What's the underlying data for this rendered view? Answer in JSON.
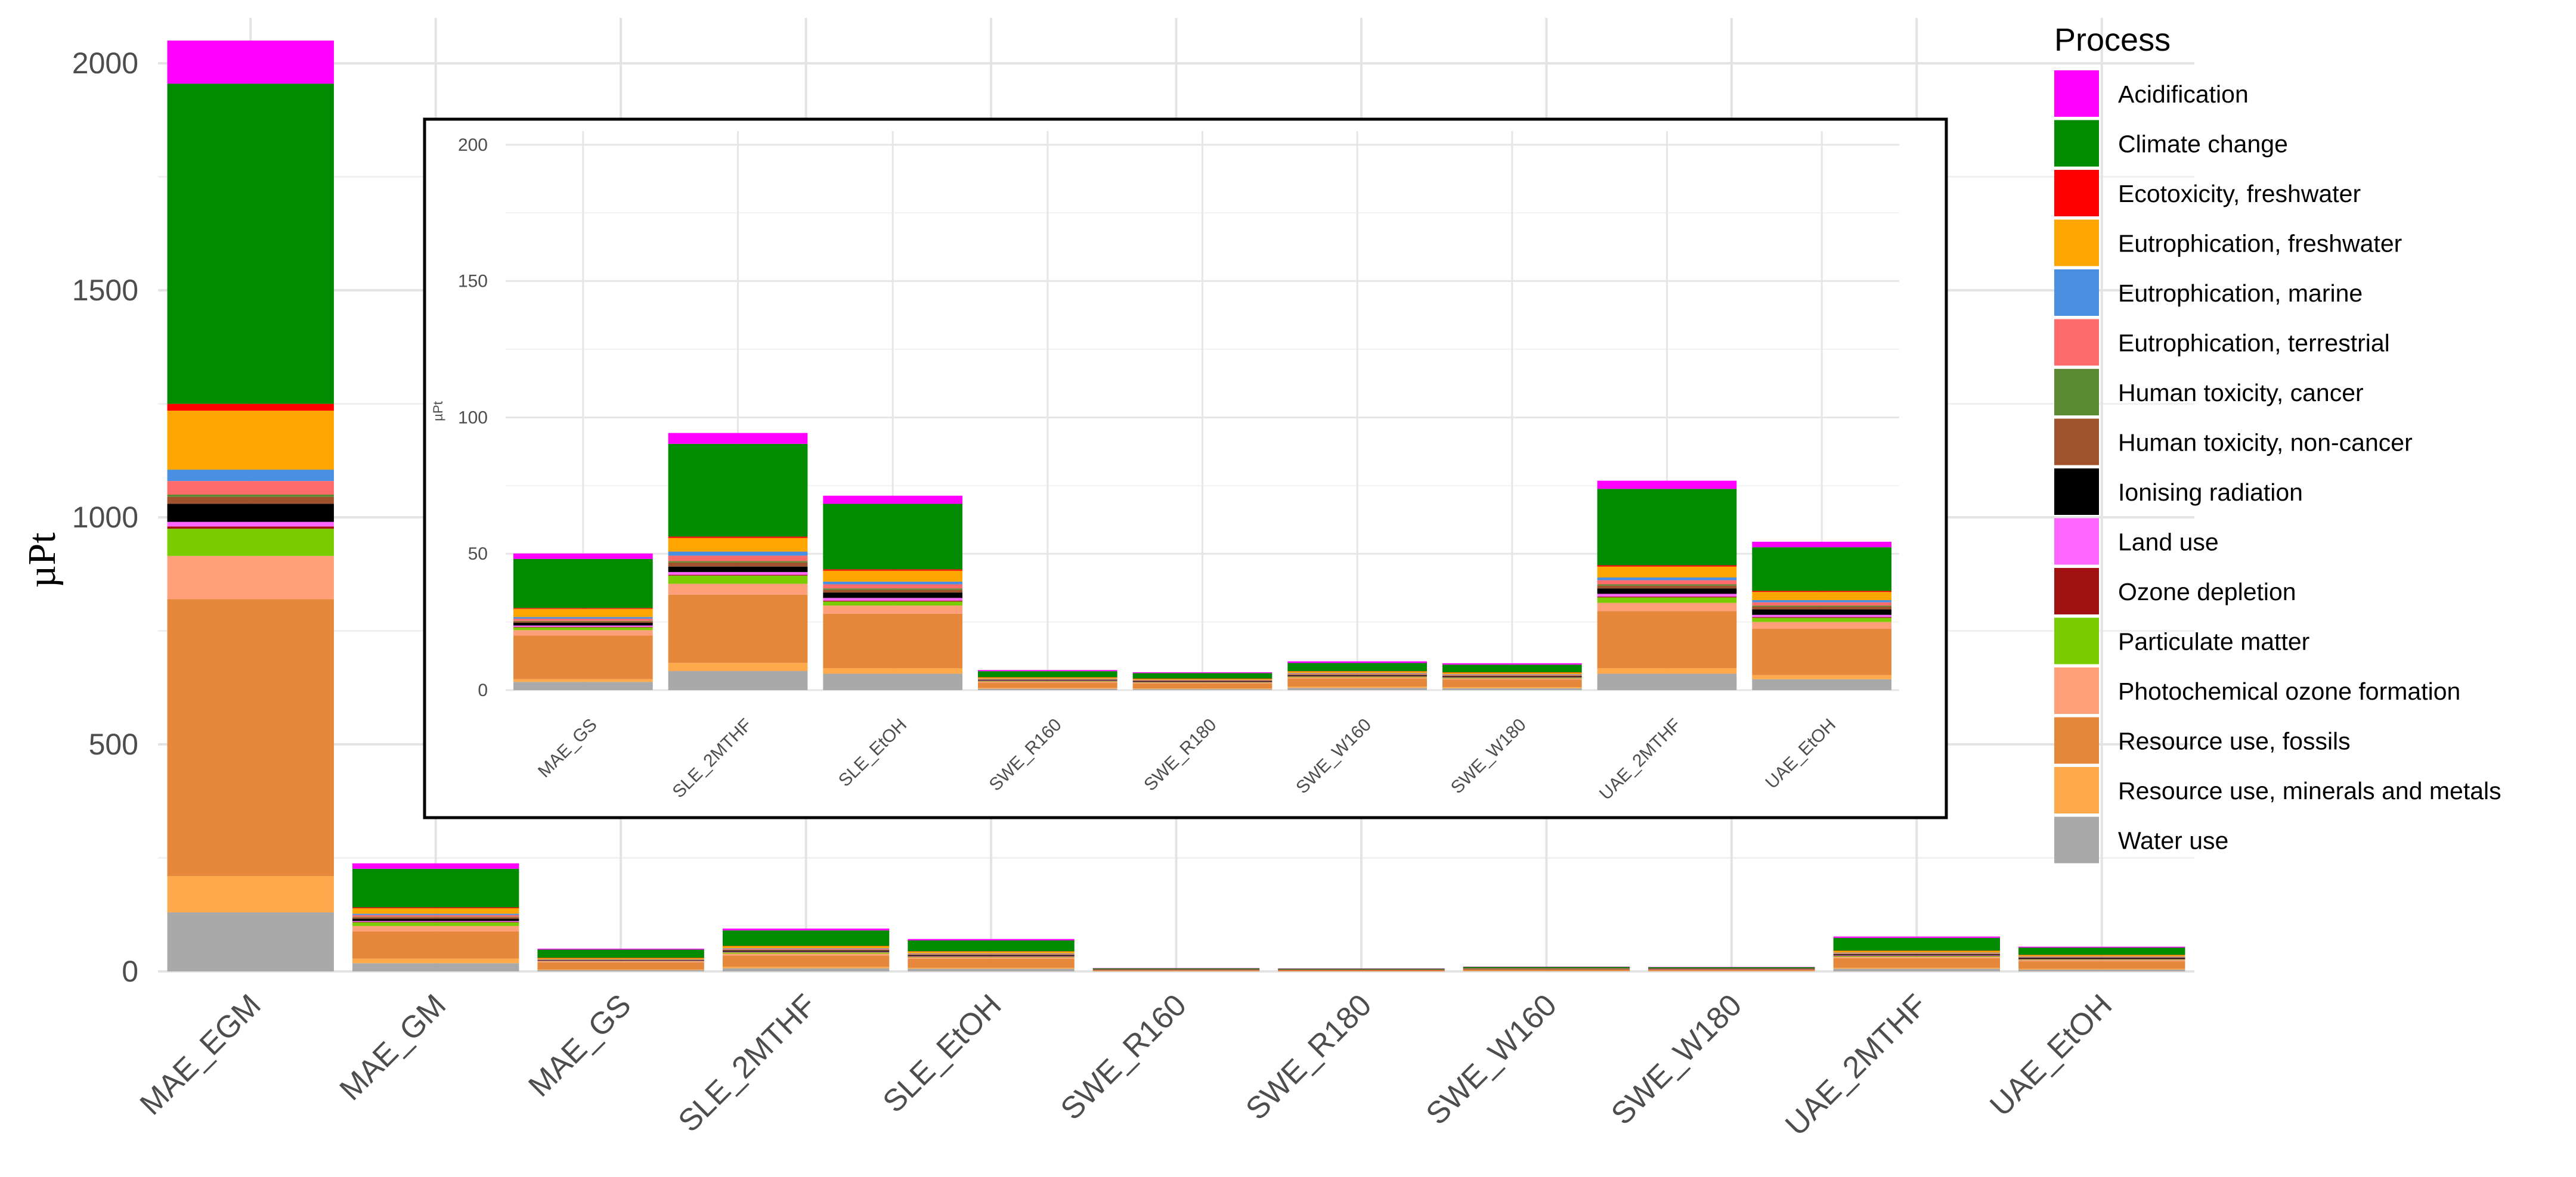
{
  "chart_data": {
    "type": "bar",
    "stacked": true,
    "ylabel": "µPt",
    "grid": true,
    "legend": {
      "title": "Process",
      "position": "right",
      "items": [
        {
          "name": "Acidification",
          "color": "#FF00FF"
        },
        {
          "name": "Climate change",
          "color": "#008B00"
        },
        {
          "name": "Ecotoxicity, freshwater",
          "color": "#FF0000"
        },
        {
          "name": "Eutrophication, freshwater",
          "color": "#FFA500"
        },
        {
          "name": "Eutrophication, marine",
          "color": "#4A90E2"
        },
        {
          "name": "Eutrophication, terrestrial",
          "color": "#FF6B6B"
        },
        {
          "name": "Human toxicity, cancer",
          "color": "#5B8A32"
        },
        {
          "name": "Human toxicity, non-cancer",
          "color": "#A0522D"
        },
        {
          "name": "Ionising radiation",
          "color": "#000000"
        },
        {
          "name": "Land use",
          "color": "#FF66FF"
        },
        {
          "name": "Ozone depletion",
          "color": "#A01010"
        },
        {
          "name": "Particulate matter",
          "color": "#7ACC00"
        },
        {
          "name": "Photochemical ozone formation",
          "color": "#FFA07A"
        },
        {
          "name": "Resource use, fossils",
          "color": "#E6883C"
        },
        {
          "name": "Resource use, minerals and metals",
          "color": "#FFA94D"
        },
        {
          "name": "Water use",
          "color": "#A9A9A9"
        }
      ]
    },
    "main": {
      "categories": [
        "MAE_EGM",
        "MAE_GM",
        "MAE_GS",
        "SLE_2MTHF",
        "SLE_EtOH",
        "SWE_R160",
        "SWE_R180",
        "SWE_W160",
        "SWE_W180",
        "UAE_2MTHF",
        "UAE_EtOH"
      ],
      "ylim": [
        0,
        2100
      ],
      "yticks": [
        0,
        500,
        1000,
        1500,
        2000
      ],
      "series": [
        {
          "name": "Water use",
          "values": [
            130,
            18,
            3,
            7,
            6,
            0.5,
            0.4,
            0.8,
            0.7,
            6,
            4
          ]
        },
        {
          "name": "Resource use, minerals and metals",
          "values": [
            80,
            10,
            1,
            3,
            2,
            0.3,
            0.2,
            0.5,
            0.4,
            2,
            1.5
          ]
        },
        {
          "name": "Resource use, fossils",
          "values": [
            610,
            60,
            16,
            25,
            20,
            2,
            1.8,
            3,
            2.8,
            21,
            17
          ]
        },
        {
          "name": "Photochemical ozone formation",
          "values": [
            95,
            12,
            2,
            4,
            3,
            0.3,
            0.3,
            0.4,
            0.4,
            3,
            2.5
          ]
        },
        {
          "name": "Particulate matter",
          "values": [
            60,
            8,
            1,
            3,
            1.5,
            0.2,
            0.2,
            0.3,
            0.3,
            2,
            1.5
          ]
        },
        {
          "name": "Ozone depletion",
          "values": [
            5,
            1,
            0.2,
            0.3,
            0.3,
            0.05,
            0.05,
            0.05,
            0.05,
            0.3,
            0.3
          ]
        },
        {
          "name": "Land use",
          "values": [
            10,
            2,
            0.5,
            1,
            1,
            0.1,
            0.1,
            0.1,
            0.1,
            1,
            0.8
          ]
        },
        {
          "name": "Ionising radiation",
          "values": [
            40,
            5,
            1,
            2,
            2,
            0.2,
            0.2,
            0.3,
            0.3,
            2,
            2
          ]
        },
        {
          "name": "Human toxicity, non-cancer",
          "values": [
            15,
            3,
            0.5,
            1.5,
            1,
            0.2,
            0.2,
            0.2,
            0.2,
            1,
            1
          ]
        },
        {
          "name": "Human toxicity, cancer",
          "values": [
            5,
            1,
            0.2,
            0.5,
            0.5,
            0.05,
            0.05,
            0.1,
            0.1,
            0.5,
            0.4
          ]
        },
        {
          "name": "Eutrophication, terrestrial",
          "values": [
            30,
            4,
            0.8,
            2,
            1.5,
            0.2,
            0.2,
            0.3,
            0.3,
            1.5,
            1.2
          ]
        },
        {
          "name": "Eutrophication, marine",
          "values": [
            25,
            3,
            0.6,
            1.5,
            1,
            0.1,
            0.1,
            0.2,
            0.2,
            1,
            0.8
          ]
        },
        {
          "name": "Eutrophication, freshwater",
          "values": [
            130,
            12,
            3,
            5,
            4,
            0.5,
            0.4,
            0.6,
            0.6,
            4,
            3
          ]
        },
        {
          "name": "Ecotoxicity, freshwater",
          "values": [
            15,
            2,
            0.3,
            0.5,
            0.5,
            0.05,
            0.05,
            0.1,
            0.1,
            0.5,
            0.4
          ]
        },
        {
          "name": "Climate change",
          "values": [
            705,
            85,
            18,
            34,
            24,
            2.2,
            2.0,
            3.0,
            2.8,
            28,
            16
          ]
        },
        {
          "name": "Acidification",
          "values": [
            95,
            12,
            2,
            4,
            3,
            0.4,
            0.3,
            0.6,
            0.5,
            3,
            2
          ]
        }
      ]
    },
    "inset": {
      "categories": [
        "MAE_GS",
        "SLE_2MTHF",
        "SLE_EtOH",
        "SWE_R160",
        "SWE_R180",
        "SWE_W160",
        "SWE_W180",
        "UAE_2MTHF",
        "UAE_EtOH"
      ],
      "ylabel": "µPt",
      "ylim": [
        0,
        205
      ],
      "yticks": [
        0,
        50,
        100,
        150,
        200
      ]
    }
  }
}
